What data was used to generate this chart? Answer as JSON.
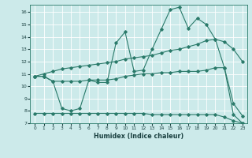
{
  "xlabel": "Humidex (Indice chaleur)",
  "ylabel": "",
  "background_color": "#cceaea",
  "grid_color": "#ffffff",
  "line_color": "#2a7a6a",
  "xlim": [
    -0.5,
    23.5
  ],
  "ylim": [
    7,
    16.6
  ],
  "yticks": [
    7,
    8,
    9,
    10,
    11,
    12,
    13,
    14,
    15,
    16
  ],
  "xticks": [
    0,
    1,
    2,
    3,
    4,
    5,
    6,
    7,
    8,
    9,
    10,
    11,
    12,
    13,
    14,
    15,
    16,
    17,
    18,
    19,
    20,
    21,
    22,
    23
  ],
  "line1_x": [
    0,
    1,
    2,
    3,
    4,
    5,
    6,
    7,
    8,
    9,
    10,
    11,
    12,
    13,
    14,
    15,
    16,
    17,
    18,
    19,
    20,
    21,
    22,
    23
  ],
  "line1_y": [
    10.8,
    10.8,
    10.4,
    8.2,
    8.0,
    8.2,
    10.5,
    10.3,
    10.3,
    13.5,
    14.4,
    11.2,
    11.3,
    13.0,
    14.6,
    16.2,
    16.4,
    14.7,
    15.5,
    15.0,
    13.8,
    11.5,
    7.7,
    7.0
  ],
  "line2_x": [
    0,
    1,
    2,
    3,
    4,
    5,
    6,
    7,
    8,
    9,
    10,
    11,
    12,
    13,
    14,
    15,
    16,
    17,
    18,
    19,
    20,
    21,
    22,
    23
  ],
  "line2_y": [
    10.8,
    11.0,
    11.2,
    11.4,
    11.5,
    11.6,
    11.7,
    11.8,
    11.9,
    12.0,
    12.2,
    12.3,
    12.4,
    12.5,
    12.7,
    12.9,
    13.0,
    13.2,
    13.4,
    13.7,
    13.8,
    13.6,
    13.0,
    12.0
  ],
  "line3_x": [
    0,
    1,
    2,
    3,
    4,
    5,
    6,
    7,
    8,
    9,
    10,
    11,
    12,
    13,
    14,
    15,
    16,
    17,
    18,
    19,
    20,
    21,
    22,
    23
  ],
  "line3_y": [
    10.8,
    10.8,
    10.4,
    10.4,
    10.4,
    10.4,
    10.5,
    10.5,
    10.5,
    10.6,
    10.8,
    10.9,
    11.0,
    11.0,
    11.1,
    11.1,
    11.2,
    11.2,
    11.2,
    11.3,
    11.5,
    11.5,
    8.6,
    7.6
  ],
  "line4_x": [
    0,
    1,
    2,
    3,
    4,
    5,
    6,
    7,
    8,
    9,
    10,
    11,
    12,
    13,
    14,
    15,
    16,
    17,
    18,
    19,
    20,
    21,
    22,
    23
  ],
  "line4_y": [
    7.8,
    7.8,
    7.8,
    7.8,
    7.8,
    7.8,
    7.8,
    7.8,
    7.8,
    7.8,
    7.8,
    7.8,
    7.8,
    7.7,
    7.7,
    7.7,
    7.7,
    7.7,
    7.7,
    7.7,
    7.7,
    7.5,
    7.2,
    7.0
  ],
  "figsize": [
    3.2,
    2.0
  ],
  "dpi": 100
}
